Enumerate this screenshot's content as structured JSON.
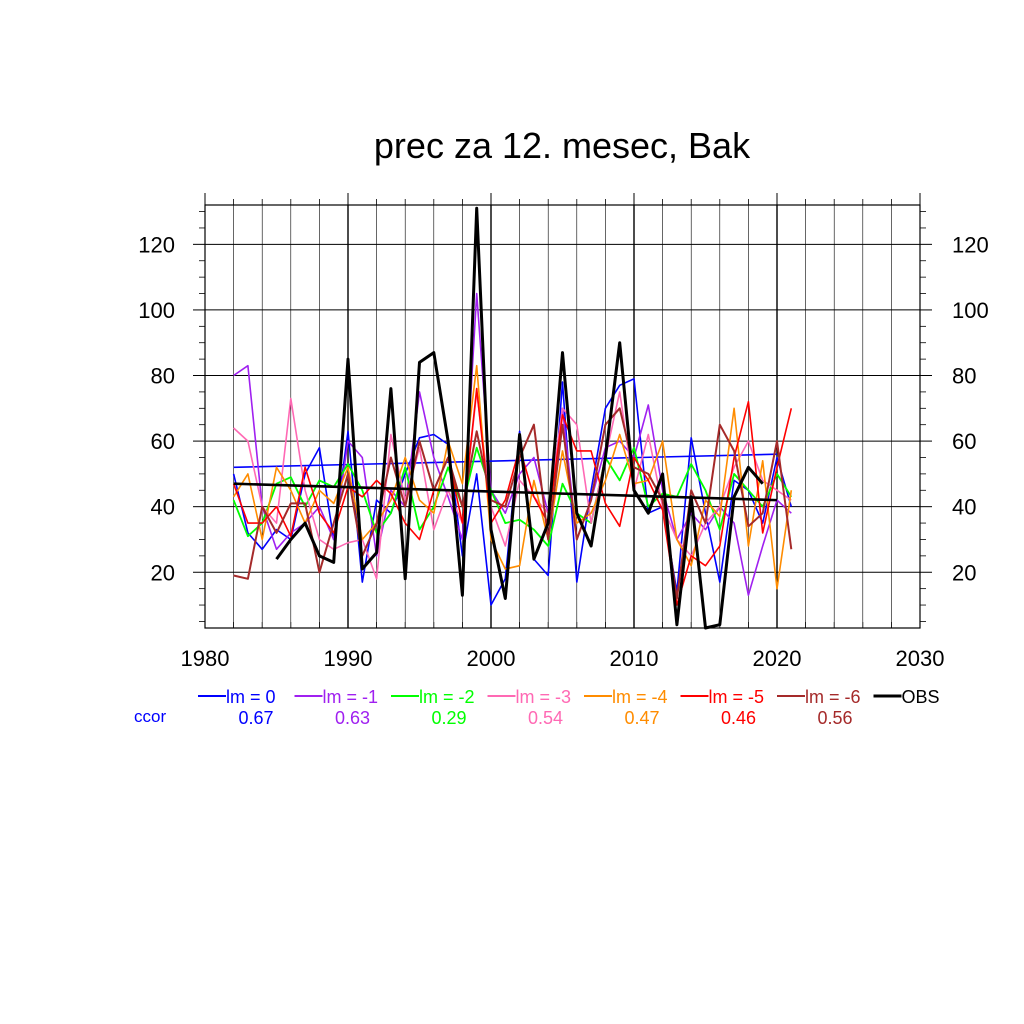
{
  "chart_data": {
    "type": "line",
    "title": "prec za 12. mesec, Bak",
    "xlim": [
      1980,
      2030
    ],
    "ylim": [
      3,
      132
    ],
    "x_ticks": [
      1980,
      1990,
      2000,
      2010,
      2020,
      2030
    ],
    "y_ticks": [
      20,
      40,
      60,
      80,
      100,
      120
    ],
    "grid": true,
    "y_labels_both_sides": true,
    "series": [
      {
        "name": "lm = 0",
        "color": "#0000ff",
        "width": 1.6,
        "x": [
          1982,
          1983,
          1984,
          1985,
          1986,
          1987,
          1988,
          1989,
          1990,
          1991,
          1992,
          1993,
          1994,
          1995,
          1996,
          1997,
          1998,
          1999,
          2000,
          2001,
          2002,
          2003,
          2004,
          2005,
          2006,
          2007,
          2008,
          2009,
          2010,
          2011,
          2012,
          2013,
          2014,
          2015,
          2016,
          2017,
          2018,
          2019,
          2020,
          2021
        ],
        "y": [
          50,
          32,
          27,
          33,
          30,
          50,
          58,
          30,
          63,
          17,
          42,
          38,
          50,
          61,
          62,
          59,
          25,
          50,
          10,
          18,
          63,
          24,
          19,
          78,
          17,
          45,
          70,
          77,
          79,
          38,
          40,
          14,
          61,
          38,
          17,
          48,
          45,
          35,
          55,
          40
        ],
        "trend": [
          52,
          56
        ]
      },
      {
        "name": "lm = -1",
        "color": "#a020f0",
        "width": 1.6,
        "x": [
          1982,
          1983,
          1984,
          1985,
          1986,
          1987,
          1988,
          1989,
          1990,
          1991,
          1992,
          1993,
          1994,
          1995,
          1996,
          1997,
          1998,
          1999,
          2000,
          2001,
          2002,
          2003,
          2004,
          2005,
          2006,
          2007,
          2008,
          2009,
          2010,
          2011,
          2012,
          2013,
          2014,
          2015,
          2016,
          2017,
          2018,
          2019,
          2020,
          2021
        ],
        "y": [
          80,
          83,
          40,
          27,
          32,
          35,
          40,
          30,
          60,
          55,
          25,
          45,
          40,
          75,
          55,
          43,
          30,
          105,
          45,
          38,
          50,
          55,
          38,
          70,
          30,
          42,
          58,
          60,
          55,
          71,
          45,
          30,
          38,
          33,
          40,
          35,
          13,
          28,
          42,
          38
        ]
      },
      {
        "name": "lm = -2",
        "color": "#00ff00",
        "width": 1.8,
        "x": [
          1982,
          1983,
          1984,
          1985,
          1986,
          1987,
          1988,
          1989,
          1990,
          1991,
          1992,
          1993,
          1994,
          1995,
          1996,
          1997,
          1998,
          1999,
          2000,
          2001,
          2002,
          2003,
          2004,
          2005,
          2006,
          2007,
          2008,
          2009,
          2010,
          2011,
          2012,
          2013,
          2014,
          2015,
          2016,
          2017,
          2018,
          2019,
          2020,
          2021
        ],
        "y": [
          42,
          31,
          35,
          47,
          49,
          40,
          48,
          46,
          53,
          45,
          32,
          38,
          52,
          33,
          40,
          52,
          40,
          58,
          45,
          35,
          36,
          33,
          28,
          47,
          38,
          35,
          55,
          48,
          58,
          40,
          44,
          43,
          53,
          45,
          33,
          50,
          45,
          40,
          50,
          43
        ]
      },
      {
        "name": "lm = -3",
        "color": "#ff69b4",
        "width": 1.6,
        "x": [
          1982,
          1983,
          1984,
          1985,
          1986,
          1987,
          1988,
          1989,
          1990,
          1991,
          1992,
          1993,
          1994,
          1995,
          1996,
          1997,
          1998,
          1999,
          2000,
          2001,
          2002,
          2003,
          2004,
          2005,
          2006,
          2007,
          2008,
          2009,
          2010,
          2011,
          2012,
          2013,
          2014,
          2015,
          2016,
          2017,
          2018,
          2019,
          2020,
          2021
        ],
        "y": [
          64,
          60,
          40,
          35,
          73,
          45,
          30,
          27,
          29,
          30,
          18,
          62,
          42,
          58,
          33,
          45,
          35,
          75,
          40,
          28,
          48,
          43,
          38,
          70,
          65,
          35,
          55,
          75,
          45,
          62,
          40,
          30,
          25,
          35,
          40,
          52,
          60,
          48,
          45,
          42
        ]
      },
      {
        "name": "lm = -4",
        "color": "#ff8c00",
        "width": 1.6,
        "x": [
          1982,
          1983,
          1984,
          1985,
          1986,
          1987,
          1988,
          1989,
          1990,
          1991,
          1992,
          1993,
          1994,
          1995,
          1996,
          1997,
          1998,
          1999,
          2000,
          2001,
          2002,
          2003,
          2004,
          2005,
          2006,
          2007,
          2008,
          2009,
          2010,
          2011,
          2012,
          2013,
          2014,
          2015,
          2016,
          2017,
          2018,
          2019,
          2020,
          2021
        ],
        "y": [
          43,
          50,
          30,
          52,
          45,
          35,
          45,
          41,
          52,
          30,
          35,
          42,
          55,
          42,
          38,
          60,
          47,
          83,
          30,
          21,
          22,
          48,
          30,
          57,
          35,
          38,
          48,
          62,
          47,
          48,
          60,
          30,
          22,
          42,
          37,
          70,
          28,
          54,
          15,
          45
        ]
      },
      {
        "name": "lm = -5",
        "color": "#ff0000",
        "width": 1.6,
        "x": [
          1982,
          1983,
          1984,
          1985,
          1986,
          1987,
          1988,
          1989,
          1990,
          1991,
          1992,
          1993,
          1994,
          1995,
          1996,
          1997,
          1998,
          1999,
          2000,
          2001,
          2002,
          2003,
          2004,
          2005,
          2006,
          2007,
          2008,
          2009,
          2010,
          2011,
          2012,
          2013,
          2014,
          2015,
          2016,
          2017,
          2018,
          2019,
          2020,
          2021
        ],
        "y": [
          47,
          35,
          35,
          40,
          31,
          52,
          38,
          32,
          46,
          43,
          48,
          44,
          35,
          30,
          45,
          55,
          35,
          76,
          35,
          42,
          58,
          43,
          35,
          68,
          57,
          57,
          41,
          34,
          55,
          48,
          39,
          10,
          25,
          22,
          28,
          55,
          72,
          32,
          52,
          70
        ]
      },
      {
        "name": "lm = -6",
        "color": "#a52a2a",
        "width": 2.0,
        "x": [
          1982,
          1983,
          1984,
          1985,
          1986,
          1987,
          1988,
          1989,
          1990,
          1991,
          1992,
          1993,
          1994,
          1995,
          1996,
          1997,
          1998,
          1999,
          2000,
          2001,
          2002,
          2003,
          2004,
          2005,
          2006,
          2007,
          2008,
          2009,
          2010,
          2011,
          2012,
          2013,
          2014,
          2015,
          2016,
          2017,
          2018,
          2019,
          2020,
          2021
        ],
        "y": [
          19,
          18,
          40,
          32,
          41,
          41,
          20,
          35,
          50,
          25,
          35,
          55,
          40,
          60,
          45,
          55,
          40,
          63,
          42,
          40,
          55,
          65,
          30,
          65,
          30,
          42,
          65,
          70,
          52,
          50,
          42,
          12,
          45,
          35,
          65,
          57,
          34,
          38,
          60,
          27
        ]
      },
      {
        "name": "OBS",
        "color": "#000000",
        "width": 3.0,
        "x": [
          1985,
          1986,
          1987,
          1988,
          1989,
          1990,
          1991,
          1992,
          1993,
          1994,
          1995,
          1996,
          1997,
          1998,
          1999,
          2000,
          2001,
          2002,
          2003,
          2004,
          2005,
          2006,
          2007,
          2008,
          2009,
          2010,
          2011,
          2012,
          2013,
          2014,
          2015,
          2016,
          2017,
          2018,
          2019
        ],
        "y": [
          24,
          30,
          35,
          25,
          23,
          85,
          21,
          26,
          76,
          18,
          84,
          87,
          60,
          13,
          131,
          33,
          12,
          62,
          24,
          35,
          87,
          38,
          28,
          55,
          90,
          45,
          38,
          50,
          4,
          43,
          3,
          4,
          43,
          52,
          47
        ],
        "trend": [
          47,
          42
        ]
      }
    ],
    "legend": {
      "position": "bottom",
      "items": [
        {
          "label": "lm = 0",
          "ccor": "0.67",
          "color": "#0000ff"
        },
        {
          "label": "lm = -1",
          "ccor": "0.63",
          "color": "#a020f0"
        },
        {
          "label": "lm = -2",
          "ccor": "0.29",
          "color": "#00ff00"
        },
        {
          "label": "lm = -3",
          "ccor": "0.54",
          "color": "#ff69b4"
        },
        {
          "label": "lm = -4",
          "ccor": "0.47",
          "color": "#ff8c00"
        },
        {
          "label": "lm = -5",
          "ccor": "0.46",
          "color": "#ff0000"
        },
        {
          "label": "lm = -6",
          "ccor": "0.56",
          "color": "#a52a2a"
        },
        {
          "label": "OBS",
          "ccor": "",
          "color": "#000000"
        }
      ],
      "ccor_label": "ccor",
      "ccor_label_color": "#0000ff"
    }
  }
}
